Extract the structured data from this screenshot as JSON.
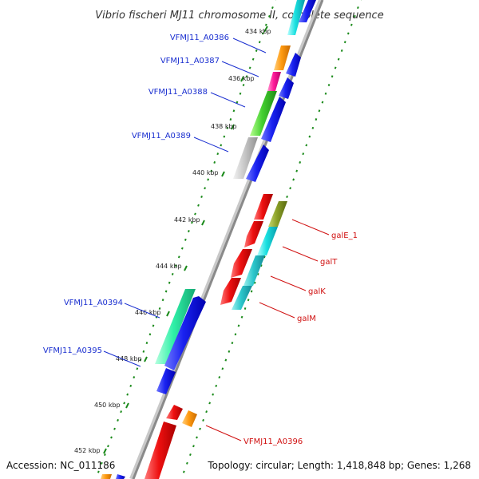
{
  "title": "Vibrio fischeri MJ11 chromosome II, complete sequence",
  "footer": {
    "accession": "Accession: NC_011186",
    "stats": "Topology: circular; Length: 1,418,848 bp; Genes: 1,268"
  },
  "ticks": [
    "434 kbp",
    "436 kbp",
    "438 kbp",
    "440 kbp",
    "442 kbp",
    "444 kbp",
    "446 kbp",
    "448 kbp",
    "450 kbp",
    "452 kbp"
  ],
  "gene_labels": {
    "left": [
      "VFMJ11_A0386",
      "VFMJ11_A0387",
      "VFMJ11_A0388",
      "VFMJ11_A0389",
      "VFMJ11_A0394",
      "VFMJ11_A0395"
    ],
    "right": [
      "galE_1",
      "galT",
      "galK",
      "galM",
      "VFMJ11_A0396"
    ]
  },
  "colors": {
    "backbone": "#8a8a8a",
    "cds_blue": "#0a12e0",
    "cds_red": "#e00000",
    "left_label": "#1a2fd0",
    "right_label": "#d01010",
    "tick_dots": "#1a8a1a"
  }
}
